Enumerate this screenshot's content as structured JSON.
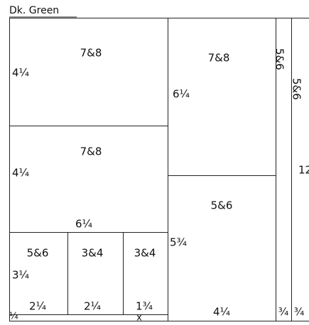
{
  "title": "Dk. Green",
  "labels": [
    "7&8",
    "4¼",
    "7&8",
    "6¼",
    "5&6",
    "5&6",
    "12",
    "7&8",
    "4¼",
    "5&6",
    "6¼",
    "5¾",
    "5&6",
    "3&4",
    "3&4",
    "3¼",
    "2¼",
    "2¼",
    "1¾",
    "¼",
    "x",
    "4¼",
    "¾",
    "¾"
  ]
}
